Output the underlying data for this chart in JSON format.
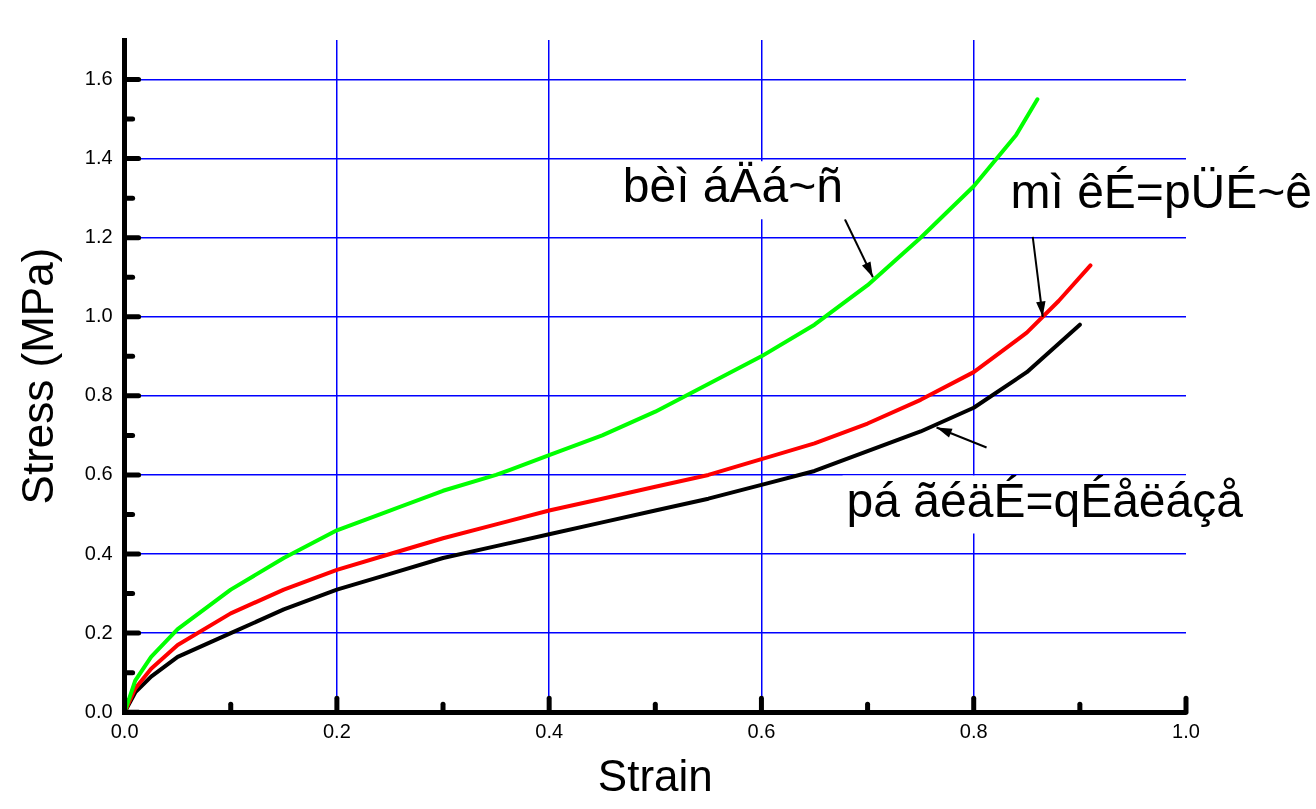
{
  "chart_data": {
    "type": "line",
    "xlabel": "Strain",
    "ylabel": "Stress (MPa)",
    "xlim": [
      0,
      1.0
    ],
    "ylim": [
      0,
      1.7
    ],
    "xticks": [
      {
        "value": 0,
        "label": "0.0"
      },
      {
        "value": 0.1,
        "label": null
      },
      {
        "value": 0.2,
        "label": "0.2"
      },
      {
        "value": 0.3,
        "label": null
      },
      {
        "value": 0.4,
        "label": "0.4"
      },
      {
        "value": 0.5,
        "label": null
      },
      {
        "value": 0.6,
        "label": "0.6"
      },
      {
        "value": 0.7,
        "label": null
      },
      {
        "value": 0.8,
        "label": "0.8"
      },
      {
        "value": 0.9,
        "label": null
      },
      {
        "value": 1.0,
        "label": "1.0"
      }
    ],
    "yticks": [
      {
        "value": 0,
        "label": "0.0"
      },
      {
        "value": 0.1,
        "label": null
      },
      {
        "value": 0.2,
        "label": "0.2"
      },
      {
        "value": 0.3,
        "label": null
      },
      {
        "value": 0.4,
        "label": "0.4"
      },
      {
        "value": 0.5,
        "label": null
      },
      {
        "value": 0.6,
        "label": "0.6"
      },
      {
        "value": 0.7,
        "label": null
      },
      {
        "value": 0.8,
        "label": "0.8"
      },
      {
        "value": 0.9,
        "label": null
      },
      {
        "value": 1.0,
        "label": "1.0"
      },
      {
        "value": 1.1,
        "label": null
      },
      {
        "value": 1.2,
        "label": "1.2"
      },
      {
        "value": 1.3,
        "label": null
      },
      {
        "value": 1.4,
        "label": "1.4"
      },
      {
        "value": 1.5,
        "label": null
      },
      {
        "value": 1.6,
        "label": "1.6"
      }
    ],
    "grid": true,
    "legend": false,
    "marker": "none",
    "line_style": "solid",
    "series": [
      {
        "color": "#00ff00",
        "x": [
          0,
          0.01,
          0.025,
          0.05,
          0.1,
          0.15,
          0.2,
          0.25,
          0.3,
          0.35,
          0.4,
          0.45,
          0.5,
          0.55,
          0.6,
          0.65,
          0.7,
          0.75,
          0.8,
          0.84,
          0.86
        ],
        "values": [
          0,
          0.08,
          0.14,
          0.21,
          0.31,
          0.39,
          0.46,
          0.51,
          0.56,
          0.6,
          0.65,
          0.7,
          0.76,
          0.83,
          0.9,
          0.98,
          1.08,
          1.2,
          1.33,
          1.46,
          1.55
        ]
      },
      {
        "color": "#ff0000",
        "x": [
          0,
          0.01,
          0.025,
          0.05,
          0.1,
          0.15,
          0.2,
          0.25,
          0.3,
          0.35,
          0.4,
          0.45,
          0.5,
          0.55,
          0.6,
          0.65,
          0.7,
          0.75,
          0.8,
          0.85,
          0.88,
          0.91
        ],
        "values": [
          0,
          0.06,
          0.11,
          0.17,
          0.25,
          0.31,
          0.36,
          0.4,
          0.44,
          0.475,
          0.51,
          0.54,
          0.57,
          0.6,
          0.64,
          0.68,
          0.73,
          0.79,
          0.86,
          0.96,
          1.04,
          1.13
        ]
      },
      {
        "color": "#000000",
        "x": [
          0,
          0.01,
          0.025,
          0.05,
          0.1,
          0.15,
          0.2,
          0.25,
          0.3,
          0.35,
          0.4,
          0.45,
          0.5,
          0.55,
          0.6,
          0.65,
          0.7,
          0.75,
          0.8,
          0.85,
          0.9
        ],
        "values": [
          0,
          0.05,
          0.09,
          0.14,
          0.2,
          0.26,
          0.31,
          0.35,
          0.39,
          0.42,
          0.45,
          0.48,
          0.51,
          0.54,
          0.575,
          0.61,
          0.66,
          0.71,
          0.77,
          0.86,
          0.98
        ]
      }
    ],
    "annotations": [
      {
        "text": "bèì áÄá~ñ",
        "x": 0.705,
        "y": 1.1
      },
      {
        "text": "mì êÉ=pÜÉ~ê",
        "x": 0.865,
        "y": 1.0
      },
      {
        "text": "pá ãéäÉ=qÉåëáçå",
        "x": 0.765,
        "y": 0.72
      }
    ]
  }
}
